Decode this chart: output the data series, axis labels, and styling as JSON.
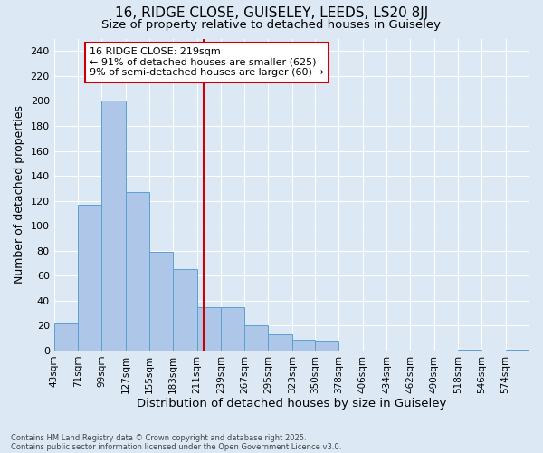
{
  "title1": "16, RIDGE CLOSE, GUISELEY, LEEDS, LS20 8JJ",
  "title2": "Size of property relative to detached houses in Guiseley",
  "xlabel": "Distribution of detached houses by size in Guiseley",
  "ylabel": "Number of detached properties",
  "footnote1": "Contains HM Land Registry data © Crown copyright and database right 2025.",
  "footnote2": "Contains public sector information licensed under the Open Government Licence v3.0.",
  "annotation_line1": "16 RIDGE CLOSE: 219sqm",
  "annotation_line2": "← 91% of detached houses are smaller (625)",
  "annotation_line3": "9% of semi-detached houses are larger (60) →",
  "bar_edges": [
    43,
    71,
    99,
    127,
    155,
    183,
    211,
    239,
    267,
    295,
    323,
    350,
    378,
    406,
    434,
    462,
    490,
    518,
    546,
    574,
    602
  ],
  "bar_heights": [
    22,
    117,
    200,
    127,
    79,
    65,
    35,
    35,
    20,
    13,
    9,
    8,
    0,
    0,
    0,
    0,
    0,
    1,
    0,
    1
  ],
  "bar_color": "#aec6e8",
  "bar_edge_color": "#5a9fd4",
  "vline_color": "#cc0000",
  "vline_x": 219,
  "box_color": "#cc0000",
  "background_color": "#dce9f5",
  "ylim": [
    0,
    250
  ],
  "yticks": [
    0,
    20,
    40,
    60,
    80,
    100,
    120,
    140,
    160,
    180,
    200,
    220,
    240
  ],
  "title_fontsize": 11,
  "subtitle_fontsize": 9.5,
  "axis_label_fontsize": 9,
  "tick_fontsize": 8,
  "annot_fontsize": 8,
  "footnote_fontsize": 6
}
